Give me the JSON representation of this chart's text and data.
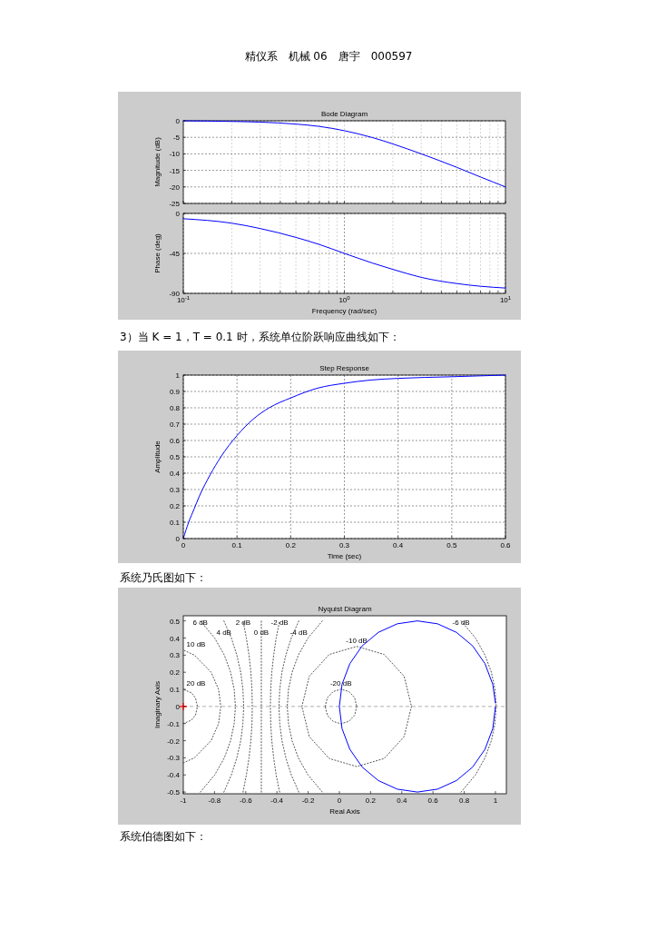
{
  "chart_data": [
    {
      "type": "line",
      "title": "Bode Diagram",
      "ylabel": "Magnitude (dB)",
      "log": "x",
      "x": [
        0.1,
        0.2,
        0.3,
        0.5,
        0.7,
        1,
        1.5,
        2,
        3,
        5,
        7,
        10
      ],
      "series": [
        {
          "color": "#0000ff",
          "values": [
            0,
            -0.2,
            -0.4,
            -1,
            -1.7,
            -3,
            -5.1,
            -7,
            -10,
            -14.1,
            -17,
            -20
          ]
        }
      ],
      "xlim": [
        0.1,
        10
      ],
      "xticks": [
        {
          "value": 0.1,
          "label": null
        },
        {
          "value": 0.2,
          "label": null
        },
        {
          "value": 0.3,
          "label": null
        },
        {
          "value": 0.4,
          "label": null
        },
        {
          "value": 0.5,
          "label": null
        },
        {
          "value": 0.6,
          "label": null
        },
        {
          "value": 0.7,
          "label": null
        },
        {
          "value": 0.8,
          "label": null
        },
        {
          "value": 0.9,
          "label": null
        },
        {
          "value": 1,
          "label": null
        },
        {
          "value": 2,
          "label": null
        },
        {
          "value": 3,
          "label": null
        },
        {
          "value": 4,
          "label": null
        },
        {
          "value": 5,
          "label": null
        },
        {
          "value": 6,
          "label": null
        },
        {
          "value": 7,
          "label": null
        },
        {
          "value": 8,
          "label": null
        },
        {
          "value": 9,
          "label": null
        },
        {
          "value": 10,
          "label": null
        }
      ],
      "ylim": [
        -25,
        0
      ],
      "yticks": [
        -25,
        -20,
        -15,
        -10,
        -5,
        0
      ],
      "grid": true,
      "tick_labels": "y",
      "annotations": [
        "精仪系　机械 06　唐宇　000597"
      ]
    },
    {
      "type": "line",
      "xlabel": "Frequency (rad/sec)",
      "ylabel": "Phase (deg)",
      "log": "x",
      "x": [
        0.1,
        0.2,
        0.3,
        0.5,
        0.7,
        1,
        1.5,
        2,
        3,
        5,
        7,
        10
      ],
      "series": [
        {
          "color": "#0000ff",
          "values": [
            -6,
            -11,
            -17,
            -27,
            -35,
            -45,
            -56,
            -63,
            -72,
            -79,
            -82,
            -84
          ]
        }
      ],
      "xlim": [
        0.1,
        10
      ],
      "xticks": [
        {
          "value": 0.1,
          "label": "10$^{-1}$"
        },
        {
          "value": 0.2,
          "label": null
        },
        {
          "value": 0.3,
          "label": null
        },
        {
          "value": 0.4,
          "label": null
        },
        {
          "value": 0.5,
          "label": null
        },
        {
          "value": 0.6,
          "label": null
        },
        {
          "value": 0.7,
          "label": null
        },
        {
          "value": 0.8,
          "label": null
        },
        {
          "value": 0.9,
          "label": null
        },
        {
          "value": 1,
          "label": "10$^{0}$"
        },
        {
          "value": 2,
          "label": null
        },
        {
          "value": 3,
          "label": null
        },
        {
          "value": 4,
          "label": null
        },
        {
          "value": 5,
          "label": null
        },
        {
          "value": 6,
          "label": null
        },
        {
          "value": 7,
          "label": null
        },
        {
          "value": 8,
          "label": null
        },
        {
          "value": 9,
          "label": null
        },
        {
          "value": 10,
          "label": "10$^{1}$"
        }
      ],
      "ylim": [
        -90,
        0
      ],
      "yticks": [
        -90,
        -45,
        0
      ],
      "grid": true
    },
    {
      "type": "line",
      "title": "Step Response",
      "xlabel": "Time (sec)",
      "ylabel": "Amplitude",
      "x": [
        0,
        0.01,
        0.02,
        0.03,
        0.05,
        0.07,
        0.1,
        0.13,
        0.16,
        0.2,
        0.25,
        0.3,
        0.35,
        0.4,
        0.5,
        0.6
      ],
      "series": [
        {
          "color": "#0000ff",
          "values": [
            0,
            0.1,
            0.18,
            0.26,
            0.39,
            0.5,
            0.63,
            0.73,
            0.8,
            0.86,
            0.92,
            0.95,
            0.97,
            0.98,
            0.99,
            1
          ]
        }
      ],
      "xlim": [
        0,
        0.6
      ],
      "xticks": [
        0,
        0.1,
        0.2,
        0.3,
        0.4,
        0.5,
        0.6
      ],
      "ylim": [
        0,
        1
      ],
      "yticks": [
        0,
        0.1,
        0.2,
        0.3,
        0.4,
        0.5,
        0.6,
        0.7,
        0.8,
        0.9,
        1
      ],
      "grid": true,
      "annotations": [
        "3）当 K = 1，T = 0.1 时，系统单位阶跃响应曲线如下："
      ]
    },
    {
      "type": "line",
      "title": "Nyquist Diagram",
      "xlabel": "Real Axis",
      "ylabel": "Imaginary Axis",
      "xlim": [
        -1,
        1.07
      ],
      "xticks": [
        -1,
        -0.8,
        -0.6,
        -0.4,
        -0.2,
        0,
        0.2,
        0.4,
        0.6,
        0.8,
        1
      ],
      "ylim": [
        -0.51,
        0.53
      ],
      "yticks": [
        -0.5,
        -0.4,
        -0.3,
        -0.2,
        -0.1,
        0,
        0.1,
        0.2,
        0.3,
        0.4,
        0.5
      ],
      "ref_lines": [
        {
          "axis": "y",
          "value": 0,
          "color": "#999999",
          "line_style": "dashed"
        }
      ],
      "series": [
        {
          "name": "20 dB",
          "color": "#555555",
          "line_style": "dotted",
          "x": [
            -1,
            -0.948,
            -0.922,
            -0.909,
            -0.922,
            -0.948,
            -1
          ],
          "values": [
            -0.1,
            -0.08,
            -0.05,
            0,
            0.05,
            0.08,
            0.1
          ]
        },
        {
          "name": "10 dB",
          "color": "#555555",
          "line_style": "dotted",
          "x": [
            -1,
            -0.929,
            -0.822,
            -0.774,
            -0.76,
            -0.774,
            -0.822,
            -0.929,
            -1
          ],
          "values": [
            -0.33,
            -0.3,
            -0.2,
            -0.1,
            0,
            0.1,
            0.2,
            0.3,
            0.33
          ]
        },
        {
          "name": "6 dB",
          "color": "#555555",
          "line_style": "dotted",
          "x": [
            -0.891,
            -0.799,
            -0.737,
            -0.697,
            -0.674,
            -0.666,
            -0.674,
            -0.697,
            -0.737,
            -0.799,
            -0.891
          ],
          "values": [
            -0.5,
            -0.4,
            -0.3,
            -0.2,
            -0.1,
            0,
            0.1,
            0.2,
            0.3,
            0.4,
            0.5
          ]
        },
        {
          "name": "4 dB",
          "color": "#555555",
          "line_style": "dotted",
          "x": [
            -0.74,
            -0.692,
            -0.657,
            -0.632,
            -0.618,
            -0.613,
            -0.618,
            -0.632,
            -0.657,
            -0.692,
            -0.74
          ],
          "values": [
            -0.5,
            -0.4,
            -0.3,
            -0.2,
            -0.1,
            0,
            0.1,
            0.2,
            0.3,
            0.4,
            0.5
          ]
        },
        {
          "name": "2 dB",
          "color": "#555555",
          "line_style": "dotted",
          "x": [
            -0.617,
            -0.596,
            -0.579,
            -0.567,
            -0.56,
            -0.558,
            -0.56,
            -0.567,
            -0.579,
            -0.596,
            -0.617
          ],
          "values": [
            -0.5,
            -0.4,
            -0.3,
            -0.2,
            -0.1,
            0,
            0.1,
            0.2,
            0.3,
            0.4,
            0.5
          ]
        },
        {
          "name": "0 dB",
          "color": "#555555",
          "line_style": "dotted",
          "x": [
            -0.5,
            -0.5
          ],
          "values": [
            -0.5,
            0.5
          ]
        },
        {
          "name": "-2 dB",
          "color": "#555555",
          "line_style": "dotted",
          "x": [
            -0.383,
            -0.405,
            -0.421,
            -0.433,
            -0.44,
            -0.442,
            -0.44,
            -0.433,
            -0.421,
            -0.405,
            -0.383
          ],
          "values": [
            -0.5,
            -0.4,
            -0.3,
            -0.2,
            -0.1,
            0,
            0.1,
            0.2,
            0.3,
            0.4,
            0.5
          ]
        },
        {
          "name": "-4 dB",
          "color": "#555555",
          "line_style": "dotted",
          "x": [
            -0.26,
            -0.308,
            -0.343,
            -0.368,
            -0.382,
            -0.387,
            -0.382,
            -0.368,
            -0.343,
            -0.308,
            -0.26
          ],
          "values": [
            -0.5,
            -0.4,
            -0.3,
            -0.2,
            -0.1,
            0,
            0.1,
            0.2,
            0.3,
            0.4,
            0.5
          ]
        },
        {
          "name": "-6 dB",
          "color": "#555555",
          "line_style": "dotted",
          "x": [
            -0.109,
            -0.201,
            -0.263,
            -0.303,
            -0.326,
            -0.334,
            -0.326,
            -0.303,
            -0.263,
            -0.201,
            -0.109,
            0.335,
            0.78,
            0.872,
            0.933,
            0.974,
            0.997,
            1.005,
            0.997,
            0.974,
            0.933,
            0.872,
            0.78
          ],
          "values": [
            0.5,
            0.4,
            0.3,
            0.2,
            0.1,
            0,
            -0.1,
            -0.2,
            -0.3,
            -0.4,
            -0.5,
            null,
            -0.5,
            -0.4,
            -0.3,
            -0.2,
            -0.1,
            0,
            0.1,
            0.2,
            0.3,
            0.4,
            0.5
          ]
        },
        {
          "name": "-10 dB",
          "color": "#555555",
          "line_style": "dotted",
          "x": [
            0.462,
            0.415,
            0.287,
            0.111,
            -0.065,
            -0.193,
            -0.24,
            null,
            -0.24,
            -0.193,
            -0.065,
            0.111,
            0.287,
            0.415,
            0.462
          ],
          "values": [
            0,
            -0.176,
            -0.304,
            -0.351,
            -0.304,
            -0.176,
            0,
            null,
            0,
            0.176,
            0.304,
            0.351,
            0.304,
            0.176,
            0
          ]
        },
        {
          "name": "-20 dB",
          "color": "#555555",
          "line_style": "dotted",
          "x": [
            0.111,
            0.098,
            0.061,
            0.01,
            -0.04,
            -0.077,
            -0.091,
            null,
            -0.091,
            -0.077,
            -0.04,
            0.01,
            0.061,
            0.098,
            0.111
          ],
          "values": [
            0,
            -0.051,
            -0.087,
            -0.101,
            -0.087,
            -0.051,
            0,
            null,
            0,
            0.051,
            0.087,
            0.101,
            0.087,
            0.051,
            0
          ]
        },
        {
          "color": "#0000ff",
          "x": [
            1,
            0.983,
            0.933,
            0.854,
            0.75,
            0.629,
            0.5,
            0.371,
            0.25,
            0.146,
            0.067,
            0.017,
            0,
            0.017,
            0.067,
            0.146,
            0.25,
            0.371,
            0.5,
            0.629,
            0.75,
            0.854,
            0.933,
            0.983,
            1
          ],
          "values": [
            0,
            -0.129,
            -0.25,
            -0.354,
            -0.433,
            -0.483,
            -0.5,
            -0.483,
            -0.433,
            -0.354,
            -0.25,
            -0.129,
            0,
            0.129,
            0.25,
            0.354,
            0.433,
            0.483,
            0.5,
            0.483,
            0.433,
            0.354,
            0.25,
            0.129,
            0.02
          ]
        },
        {
          "type": "scatter",
          "color": "#ff0000",
          "marker": "cross",
          "x": [
            -1
          ],
          "values": [
            0
          ]
        }
      ],
      "annotations": [
        "系统乃氏图如下：",
        "系统伯德图如下："
      ]
    }
  ]
}
